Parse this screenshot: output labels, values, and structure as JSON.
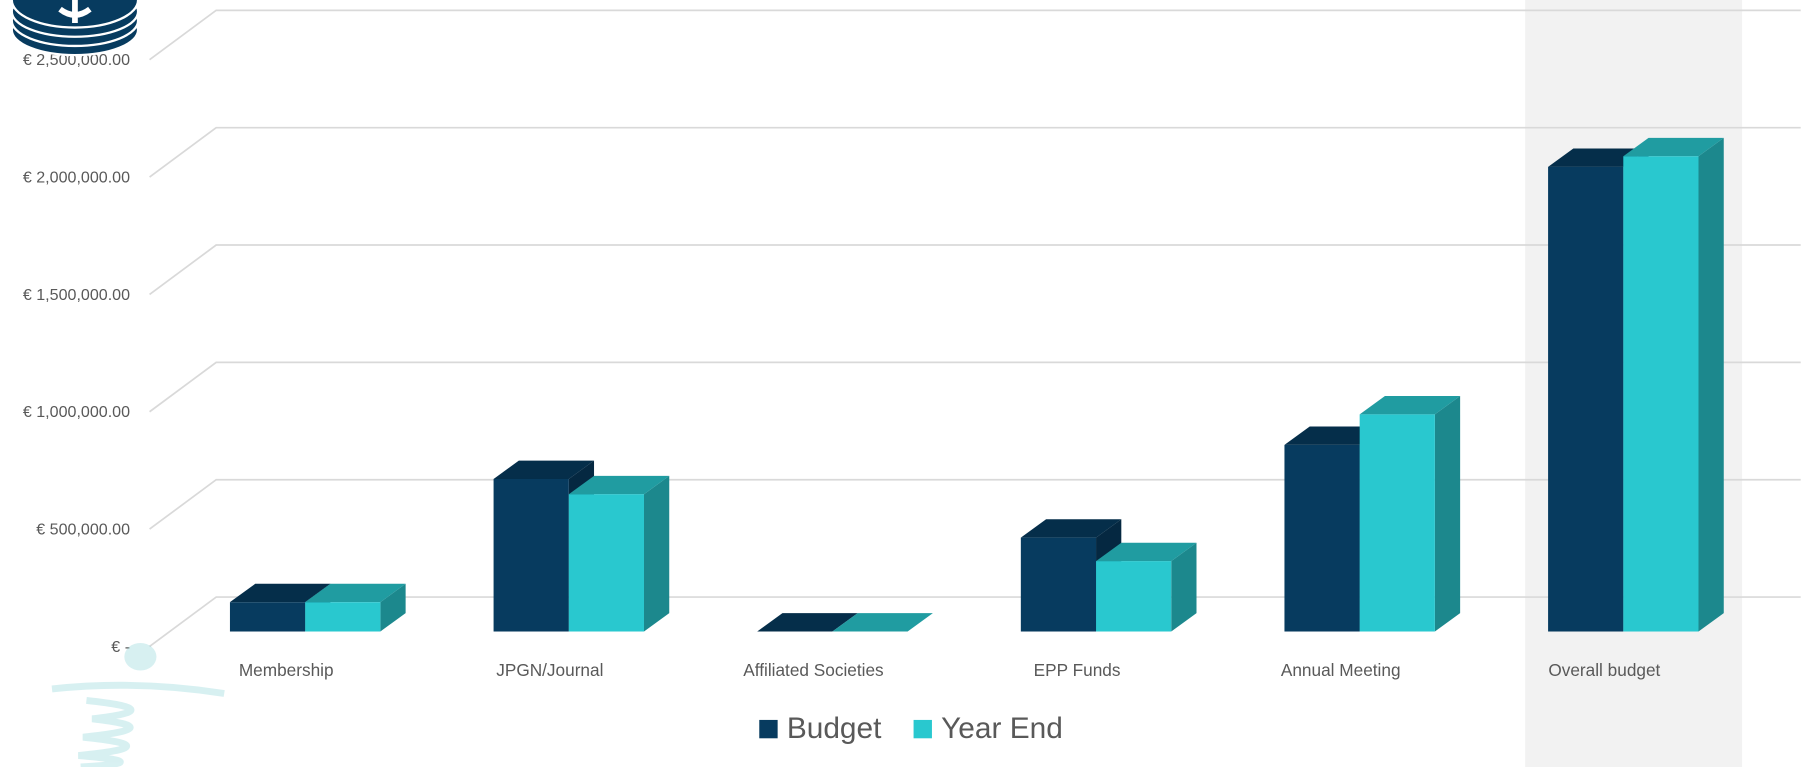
{
  "chart_data": {
    "type": "bar3d",
    "categories": [
      "Membership",
      "JPGN/Journal",
      "Affiliated Societies",
      "EPP Funds",
      "Annual Meeting",
      "Overall budget"
    ],
    "series": [
      {
        "name": "Budget",
        "color": "#073b5f",
        "values": [
          125000,
          650000,
          0,
          400000,
          795000,
          1980000
        ]
      },
      {
        "name": "Year End",
        "color": "#29c8cf",
        "values": [
          125000,
          585000,
          0,
          300000,
          925000,
          2025000
        ]
      }
    ],
    "ylim": [
      0,
      2500000
    ],
    "yticks": [
      {
        "value": 0,
        "label": "€ -"
      },
      {
        "value": 500000,
        "label": "€ 500,000.00"
      },
      {
        "value": 1000000,
        "label": "€ 1,000,000.00"
      },
      {
        "value": 1500000,
        "label": "€ 1,500,000.00"
      },
      {
        "value": 2000000,
        "label": "€ 2,000,000.00"
      },
      {
        "value": 2500000,
        "label": "€ 2,500,000.00"
      }
    ],
    "grid": true,
    "legend": "bottom"
  }
}
